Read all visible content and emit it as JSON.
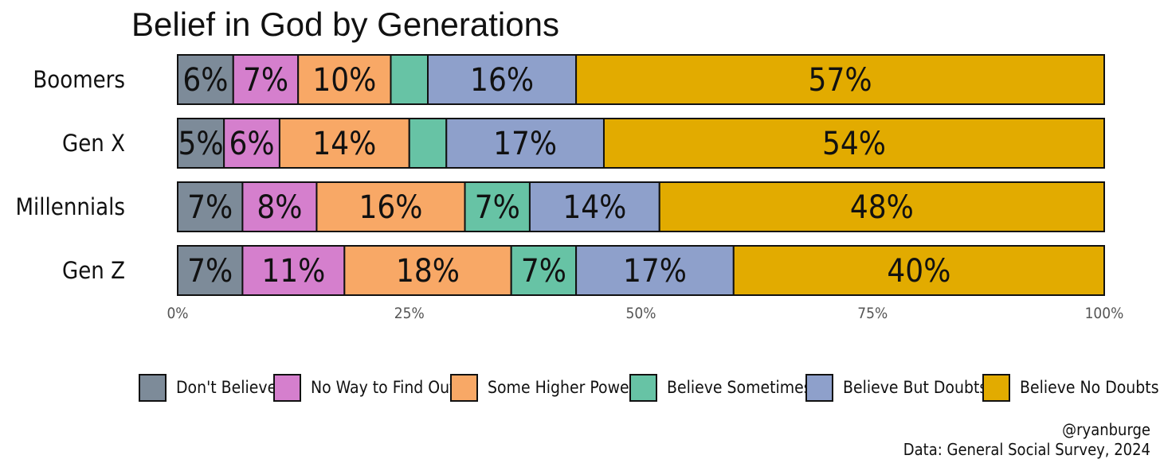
{
  "chart_data": {
    "type": "bar",
    "orientation": "horizontal",
    "stacked": true,
    "title": "Belief in God by Generations",
    "categories": [
      "Boomers",
      "Gen X",
      "Millennials",
      "Gen Z"
    ],
    "series": [
      {
        "name": "Don't Believe",
        "color": "#7d8b99",
        "values": [
          6,
          5,
          7,
          7
        ],
        "labels": [
          "6%",
          "5%",
          "7%",
          "7%"
        ]
      },
      {
        "name": "No Way to Find Out",
        "color": "#d57fcd",
        "values": [
          7,
          6,
          8,
          11
        ],
        "labels": [
          "7%",
          "6%",
          "8%",
          "11%"
        ]
      },
      {
        "name": "Some Higher Power",
        "color": "#f8a866",
        "values": [
          10,
          14,
          16,
          18
        ],
        "labels": [
          "10%",
          "14%",
          "16%",
          "18%"
        ]
      },
      {
        "name": "Believe Sometimes",
        "color": "#67c3a5",
        "values": [
          4,
          4,
          7,
          7
        ],
        "labels": [
          "",
          "",
          "7%",
          "7%"
        ]
      },
      {
        "name": "Believe But Doubts",
        "color": "#8ea0cb",
        "values": [
          16,
          17,
          14,
          17
        ],
        "labels": [
          "16%",
          "17%",
          "14%",
          "17%"
        ]
      },
      {
        "name": "Believe No Doubts",
        "color": "#e2ab00",
        "values": [
          57,
          54,
          48,
          40
        ],
        "labels": [
          "57%",
          "54%",
          "48%",
          "40%"
        ]
      }
    ],
    "xlim": [
      0,
      100
    ],
    "xticks": [
      "0%",
      "25%",
      "50%",
      "75%",
      "100%"
    ],
    "legend_position": "bottom",
    "grid": false
  },
  "caption": {
    "handle": "@ryanburge",
    "source": "Data: General Social Survey, 2024"
  }
}
